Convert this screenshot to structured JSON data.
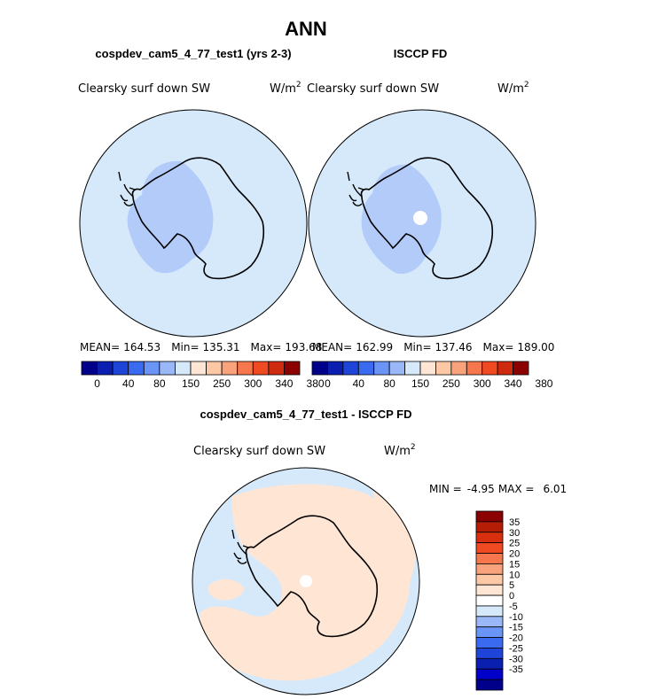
{
  "main_title": "ANN",
  "panels": [
    {
      "title": "cospdev_cam5_4_77_test1 (yrs 2-3)",
      "variable": "Clearsky surf down SW",
      "units": "W/m",
      "units_exp": "2",
      "stats": {
        "mean_label": "MEAN=",
        "mean": "164.53",
        "min_label": "Min=",
        "min": "135.31",
        "max_label": "Max=",
        "max": "193.68"
      }
    },
    {
      "title": "ISCCP FD",
      "variable": "Clearsky surf down SW",
      "units": "W/m",
      "units_exp": "2",
      "stats": {
        "mean_label": "MEAN=",
        "mean": "162.99",
        "min_label": "Min=",
        "min": "137.46",
        "max_label": "Max=",
        "max": "189.00"
      }
    }
  ],
  "abs_colorbar": {
    "colors": [
      "#00008b",
      "#0a1fb0",
      "#1f45d8",
      "#3a6af0",
      "#6a94f5",
      "#9ab8f7",
      "#d6e9fb",
      "#ffe6d4",
      "#fcc8a6",
      "#f9a37d",
      "#f6774d",
      "#f04a22",
      "#cd2a10",
      "#8b0000"
    ],
    "labels": [
      "0",
      "40",
      "80",
      "150",
      "250",
      "300",
      "340",
      "380"
    ]
  },
  "diff_panel": {
    "title": "cospdev_cam5_4_77_test1 - ISCCP FD",
    "variable": "Clearsky surf down SW",
    "units": "W/m",
    "units_exp": "2",
    "min_label": "MIN =",
    "min": "-4.95",
    "max_label": "MAX =",
    "max": "6.01"
  },
  "diff_colorbar": {
    "colors": [
      "#8b0000",
      "#b51d06",
      "#d8300e",
      "#f04a22",
      "#f6774d",
      "#f9a37d",
      "#fcc8a6",
      "#ffe6d4",
      "#ffffff",
      "#d6e9fb",
      "#9ab8f7",
      "#6a94f5",
      "#3a6af0",
      "#1f45d8",
      "#0a1fb0",
      "#0000c8",
      "#00008b"
    ],
    "labels": [
      "35",
      "30",
      "25",
      "20",
      "15",
      "10",
      "5",
      "0",
      "-5",
      "-10",
      "-15",
      "-20",
      "-25",
      "-30",
      "-35"
    ]
  },
  "colors": {
    "ocean_light_blue": "#d6e9fb",
    "land_mid_blue": "#b3cbf8",
    "diff_peach": "#ffe6d4",
    "coast": "#000000"
  }
}
